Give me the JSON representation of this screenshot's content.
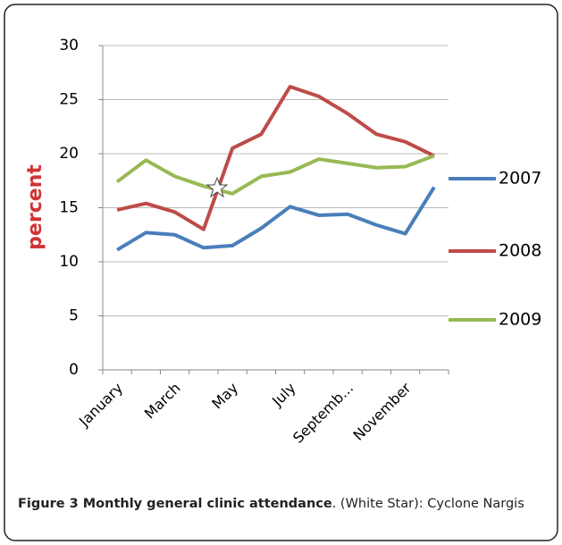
{
  "chart_data": {
    "type": "line",
    "ylabel": "percent",
    "categories": [
      "January",
      null,
      "March",
      null,
      "May",
      null,
      "July",
      null,
      "Septemb...",
      null,
      "November",
      null
    ],
    "series": [
      {
        "name": "2007",
        "color": "#4a7ebb",
        "values": [
          11.1,
          12.7,
          12.5,
          11.3,
          11.5,
          13.1,
          15.1,
          14.3,
          14.4,
          13.4,
          12.6,
          16.9
        ]
      },
      {
        "name": "2008",
        "color": "#be4b48",
        "values": [
          14.8,
          15.4,
          14.6,
          13.0,
          20.5,
          21.8,
          26.2,
          25.3,
          23.7,
          21.8,
          21.1,
          19.8
        ]
      },
      {
        "name": "2009",
        "color": "#98b954",
        "values": [
          17.4,
          19.4,
          17.9,
          17.0,
          16.3,
          17.9,
          18.3,
          19.5,
          19.1,
          18.7,
          18.8,
          19.8
        ]
      }
    ],
    "ylim": [
      0,
      30
    ],
    "yticks": [
      0,
      5,
      10,
      15,
      20,
      25,
      30
    ],
    "grid": true,
    "legend": "right"
  },
  "caption": {
    "label": "Figure 3 Monthly general clinic attendance",
    "text": ". (White Star): Cyclone Nargis"
  }
}
